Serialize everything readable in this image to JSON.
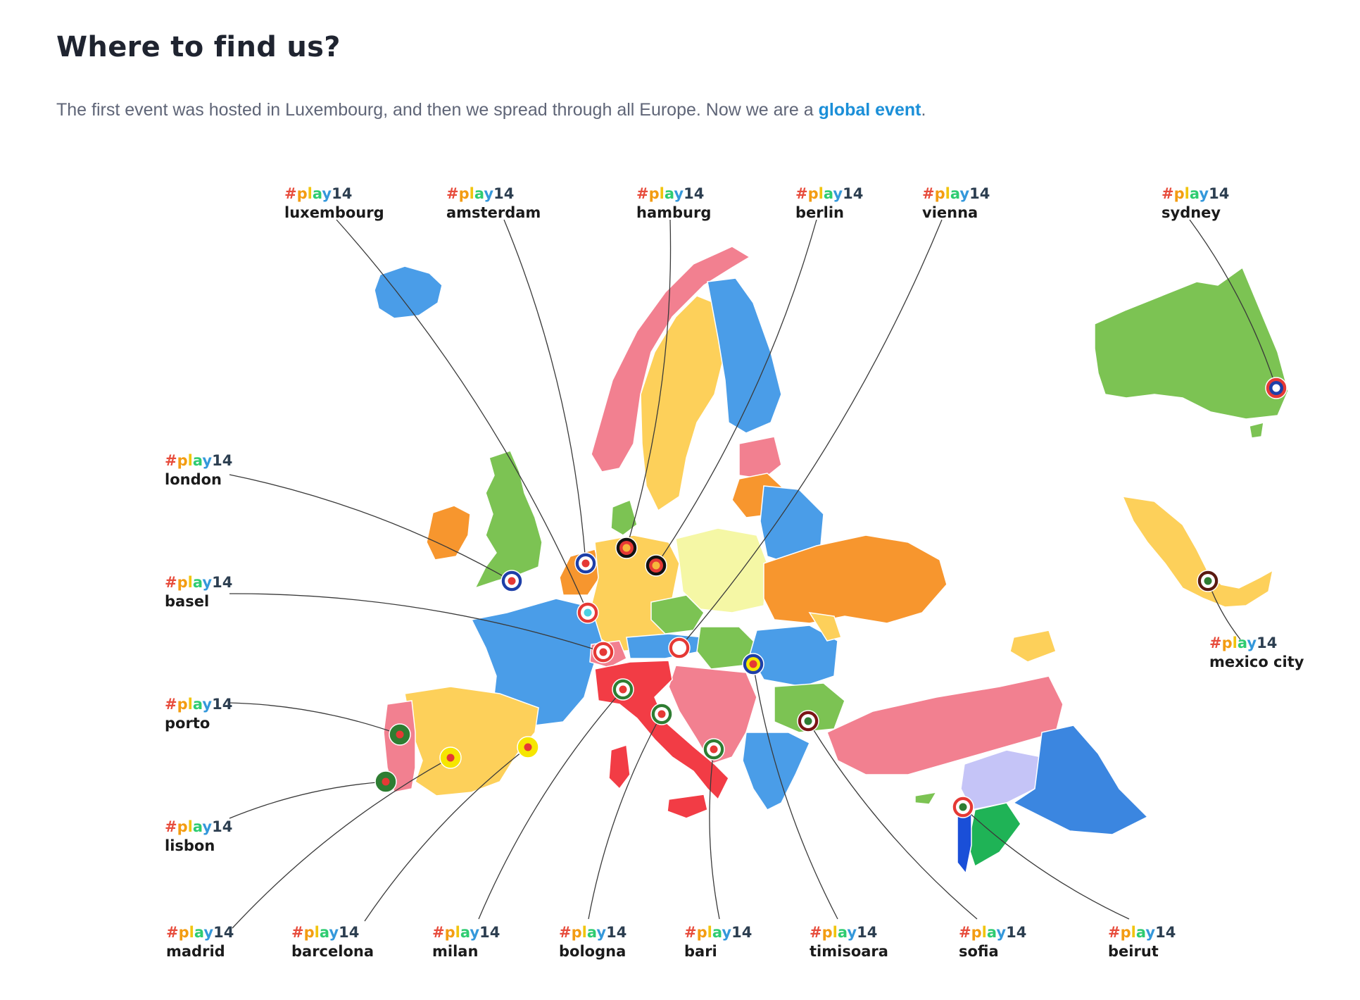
{
  "header": {
    "title": "Where to find us?",
    "intro_text": "The first event was hosted in Luxembourg, and then we spread through all Europe. Now we are a ",
    "link_text": "global event",
    "intro_end": "."
  },
  "tag": {
    "hash": "#",
    "letters": [
      "p",
      "l",
      "a",
      "y"
    ],
    "number": "14",
    "colors": [
      "#e74c3c",
      "#f39c12",
      "#f1c40f",
      "#2ecc71",
      "#3498db",
      "#2c3e50"
    ]
  },
  "cities": [
    {
      "id": "luxembourg",
      "name": "luxembourg",
      "ring": "#e53935",
      "inner": "#ffffff",
      "dot": "#4dd0e1"
    },
    {
      "id": "amsterdam",
      "name": "amsterdam",
      "ring": "#1e3fa8",
      "inner": "#ffffff",
      "dot": "#e53935"
    },
    {
      "id": "hamburg",
      "name": "hamburg",
      "ring": "#111111",
      "inner": "#e53935",
      "dot": "#f6b73c"
    },
    {
      "id": "berlin",
      "name": "berlin",
      "ring": "#111111",
      "inner": "#e53935",
      "dot": "#f6b73c"
    },
    {
      "id": "vienna",
      "name": "vienna",
      "ring": "#e53935",
      "inner": "#ffffff",
      "dot": "#ffffff"
    },
    {
      "id": "sydney",
      "name": "sydney",
      "ring": "#e53935",
      "inner": "#1e3fa8",
      "dot": "#ffffff"
    },
    {
      "id": "london",
      "name": "london",
      "ring": "#1e3fa8",
      "inner": "#ffffff",
      "dot": "#e53935"
    },
    {
      "id": "basel",
      "name": "basel",
      "ring": "#e53935",
      "inner": "#ffffff",
      "dot": "#e53935"
    },
    {
      "id": "porto",
      "name": "porto",
      "ring": "#2e7d32",
      "inner": "#2e7d32",
      "dot": "#e53935"
    },
    {
      "id": "lisbon",
      "name": "lisbon",
      "ring": "#2e7d32",
      "inner": "#2e7d32",
      "dot": "#e53935"
    },
    {
      "id": "madrid",
      "name": "madrid",
      "ring": "#f6e600",
      "inner": "#f6e600",
      "dot": "#e53935"
    },
    {
      "id": "barcelona",
      "name": "barcelona",
      "ring": "#f6e600",
      "inner": "#f6e600",
      "dot": "#e53935"
    },
    {
      "id": "milan",
      "name": "milan",
      "ring": "#2e7d32",
      "inner": "#ffffff",
      "dot": "#e53935"
    },
    {
      "id": "bologna",
      "name": "bologna",
      "ring": "#2e7d32",
      "inner": "#ffffff",
      "dot": "#e53935"
    },
    {
      "id": "bari",
      "name": "bari",
      "ring": "#2e7d32",
      "inner": "#ffffff",
      "dot": "#e53935"
    },
    {
      "id": "timisoara",
      "name": "timisoara",
      "ring": "#1e3fa8",
      "inner": "#f6e600",
      "dot": "#e53935"
    },
    {
      "id": "sofia",
      "name": "sofia",
      "ring": "#7a1515",
      "inner": "#ffffff",
      "dot": "#2e7d32"
    },
    {
      "id": "beirut",
      "name": "beirut",
      "ring": "#e53935",
      "inner": "#ffffff",
      "dot": "#2e7d32"
    },
    {
      "id": "mexico-city",
      "name": "mexico city",
      "ring": "#5a1a10",
      "inner": "#ffffff",
      "dot": "#2e7d32"
    }
  ],
  "country_colors": {
    "iceland": "#4a9de8",
    "ireland": "#f7962e",
    "uk": "#7cc353",
    "norway": "#f28090",
    "sweden": "#fdd05a",
    "finland": "#4a9de8",
    "france": "#4a9de8",
    "spain": "#fdd05a",
    "portugal": "#f28090",
    "italy": "#f23c45",
    "germany": "#fdd05a",
    "poland": "#f5f7a5",
    "ukraine": "#f7962e",
    "turkey": "#f28090",
    "syria": "#c5c4f7",
    "iraq": "#3b86e0",
    "australia": "#7cc353",
    "mexico": "#fdd05a"
  }
}
